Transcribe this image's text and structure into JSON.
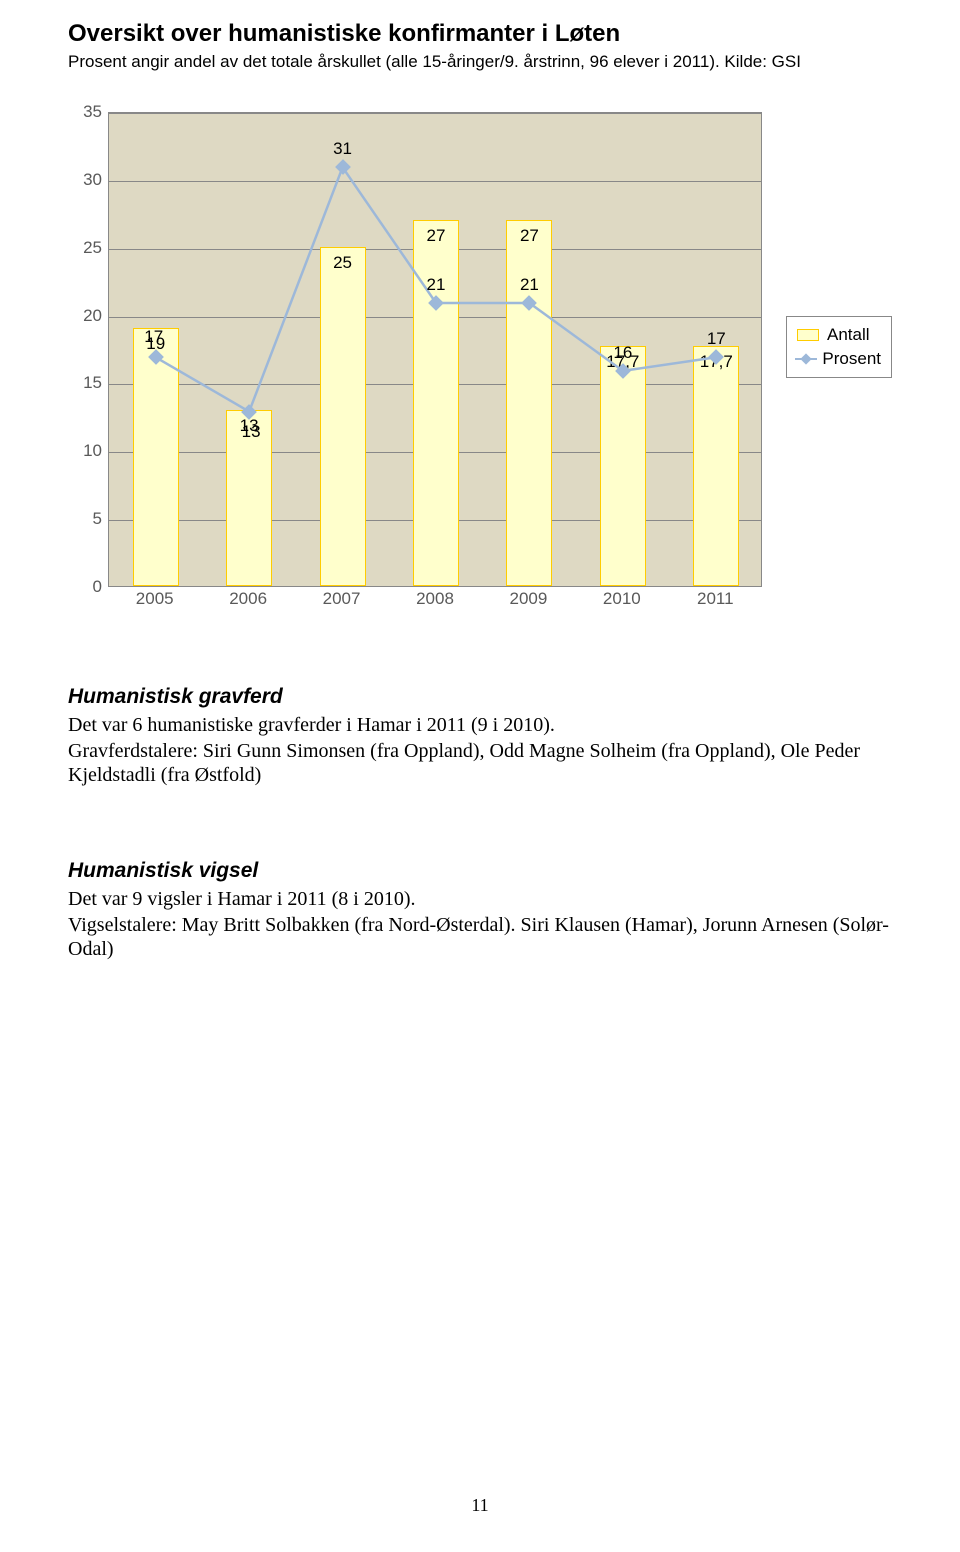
{
  "header": {
    "title": "Oversikt over humanistiske konfirmanter i Løten",
    "subtitle": "Prosent angir andel av det totale årskullet (alle 15-åringer/9. årstrinn, 96 elever i 2011). Kilde: GSI"
  },
  "chart": {
    "type": "bar+line",
    "background_color": "#ded9c3",
    "bar_fill": "#ffffcc",
    "bar_border": "#ffcc00",
    "line_color": "#9db8d9",
    "grid_color": "#888888",
    "label_fontsize": 17,
    "ylim": [
      0,
      35
    ],
    "ytick_step": 5,
    "yticks": [
      "0",
      "5",
      "10",
      "15",
      "20",
      "25",
      "30",
      "35"
    ],
    "categories": [
      "2005",
      "2006",
      "2007",
      "2008",
      "2009",
      "2010",
      "2011"
    ],
    "bars": [
      19,
      13,
      25,
      27,
      27,
      17.7,
      17.7
    ],
    "bar_labels": [
      "19",
      "13",
      "25",
      "27",
      "27",
      "17,7",
      "17,7"
    ],
    "line_points": [
      17,
      13,
      31,
      21,
      21,
      16,
      17
    ],
    "line_labels": [
      "17",
      "13",
      "31",
      "21",
      "21",
      "16",
      "17"
    ],
    "legend": {
      "bar": "Antall",
      "line": "Prosent"
    }
  },
  "sections": {
    "gravferd": {
      "heading": "Humanistisk gravferd",
      "p1": "Det var 6 humanistiske gravferder i Hamar i 2011 (9 i 2010).",
      "p2": "Gravferdstalere: Siri Gunn Simonsen (fra Oppland), Odd Magne Solheim (fra Oppland), Ole Peder Kjeldstadli (fra Østfold)"
    },
    "vigsel": {
      "heading": "Humanistisk vigsel",
      "p1": "Det var 9 vigsler i Hamar i 2011 (8 i 2010).",
      "p2": "Vigselstalere: May Britt Solbakken (fra Nord-Østerdal). Siri Klausen (Hamar), Jorunn Arnesen (Solør-Odal)"
    }
  },
  "page_number": "11"
}
